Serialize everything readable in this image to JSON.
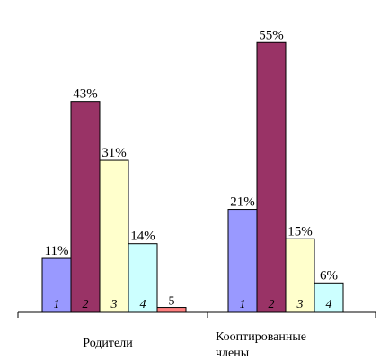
{
  "chart_data": {
    "type": "bar",
    "title": "",
    "xlabel": "",
    "ylabel": "",
    "ylim": [
      0,
      60
    ],
    "grid": false,
    "legend": "none",
    "value_suffix": "%",
    "categories": [
      "Родители",
      "Коoптированные члены"
    ],
    "category_label_lines": [
      [
        "Родители"
      ],
      [
        "Коoптированные",
        "члены"
      ]
    ],
    "groups": [
      {
        "category": "Родители",
        "bars": [
          {
            "index_label": "1",
            "value": 11,
            "label": "11%",
            "color": "#9999ff"
          },
          {
            "index_label": "2",
            "value": 43,
            "label": "43%",
            "color": "#993366"
          },
          {
            "index_label": "3",
            "value": 31,
            "label": "31%",
            "color": "#ffffcc"
          },
          {
            "index_label": "4",
            "value": 14,
            "label": "14%",
            "color": "#ccffff"
          },
          {
            "index_label": "5",
            "value": 1,
            "label": "",
            "color": "#ff8080"
          }
        ]
      },
      {
        "category": "Коoптированные члены",
        "bars": [
          {
            "index_label": "1",
            "value": 21,
            "label": "21%",
            "color": "#9999ff"
          },
          {
            "index_label": "2",
            "value": 55,
            "label": "55%",
            "color": "#993366"
          },
          {
            "index_label": "3",
            "value": 15,
            "label": "15%",
            "color": "#ffffcc"
          },
          {
            "index_label": "4",
            "value": 6,
            "label": "6%",
            "color": "#ccffff"
          }
        ]
      }
    ]
  }
}
